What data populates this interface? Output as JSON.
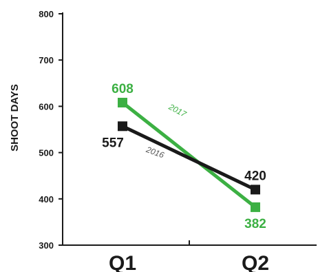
{
  "chart_data": {
    "type": "line",
    "categories": [
      "Q1",
      "Q2"
    ],
    "ylabel": "SHOOT DAYS",
    "ylim": [
      300,
      800
    ],
    "yticks": [
      300,
      400,
      500,
      600,
      700,
      800
    ],
    "grid": false,
    "legend": "inline labels on lines",
    "series": [
      {
        "name": "2017",
        "values": [
          608,
          382
        ],
        "color": "#3cb043"
      },
      {
        "name": "2016",
        "values": [
          557,
          420
        ],
        "color": "#1a1a1a"
      }
    ]
  }
}
